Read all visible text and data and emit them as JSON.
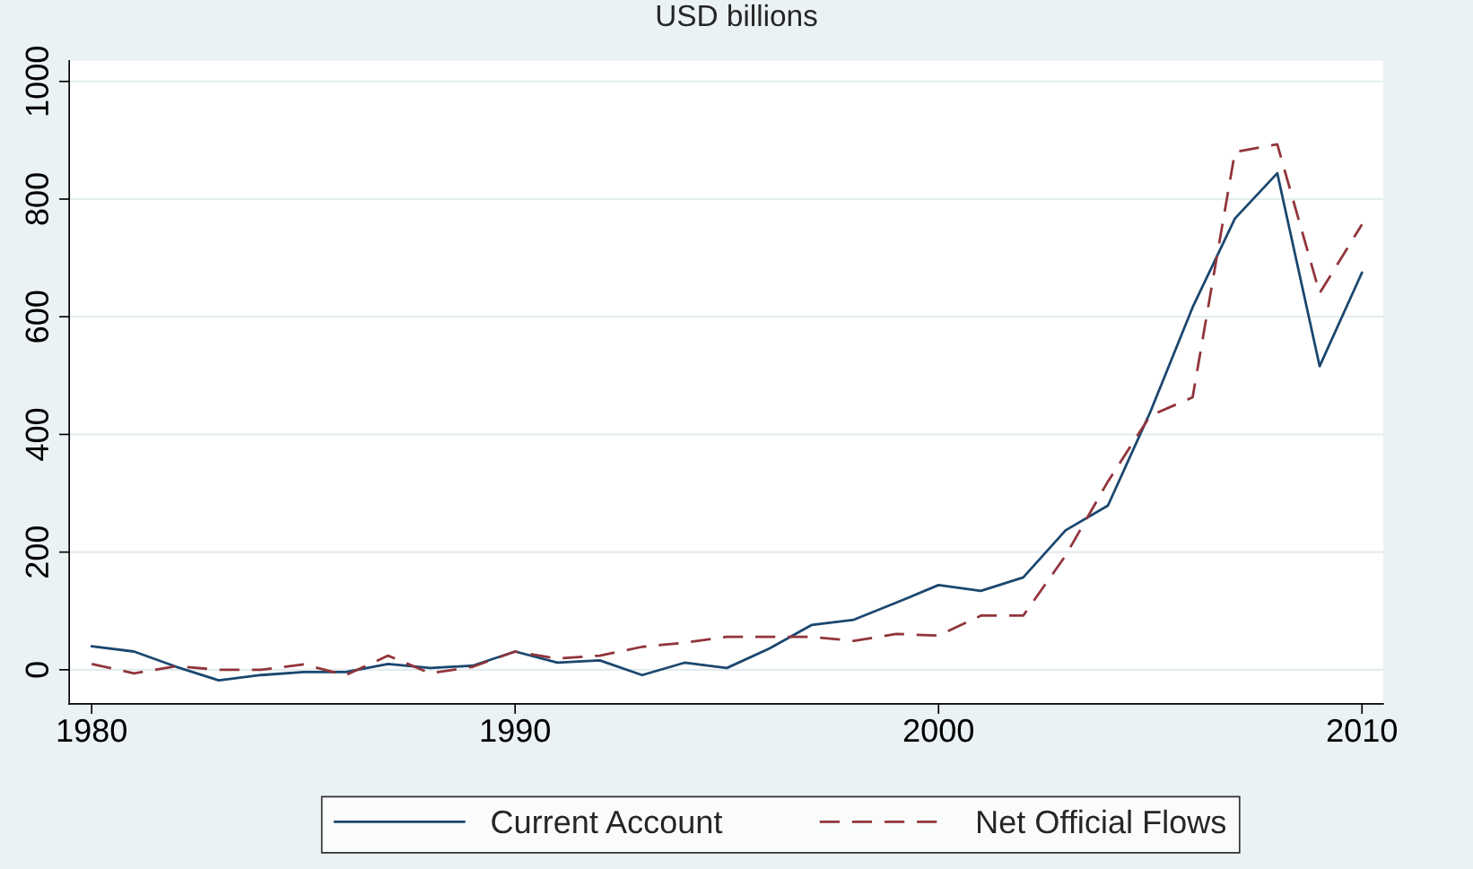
{
  "chart_data": {
    "type": "line",
    "title": "USD billions",
    "x": [
      1980,
      1981,
      1982,
      1983,
      1984,
      1985,
      1986,
      1987,
      1988,
      1989,
      1990,
      1991,
      1992,
      1993,
      1994,
      1995,
      1996,
      1997,
      1998,
      1999,
      2000,
      2001,
      2002,
      2003,
      2004,
      2005,
      2006,
      2007,
      2008,
      2009,
      2010
    ],
    "series": [
      {
        "name": "Current Account",
        "color": "#1a476f",
        "line_style": "solid",
        "values": [
          40,
          31,
          5,
          -18,
          -9,
          -4,
          -4,
          10,
          3,
          7,
          31,
          12,
          16,
          -9,
          12,
          3,
          36,
          76,
          85,
          114,
          144,
          134,
          157,
          237,
          279,
          438,
          616,
          767,
          844,
          516,
          675
        ]
      },
      {
        "name": "Net Official Flows",
        "color": "#90353b",
        "line_style": "dashed",
        "values": [
          10,
          -6,
          6,
          0,
          0,
          9,
          -9,
          24,
          -6,
          5,
          31,
          19,
          24,
          39,
          46,
          56,
          56,
          56,
          49,
          61,
          58,
          92,
          92,
          194,
          320,
          432,
          463,
          880,
          893,
          640,
          757
        ]
      }
    ],
    "xlim": [
      1979.47,
      2010.5
    ],
    "ylim": [
      -58,
      1035
    ],
    "xticks": [
      1980,
      1990,
      2000,
      2010
    ],
    "yticks": [
      0,
      200,
      400,
      600,
      800,
      1000
    ],
    "grid": "y",
    "legend": "bottom",
    "marker": "none"
  }
}
